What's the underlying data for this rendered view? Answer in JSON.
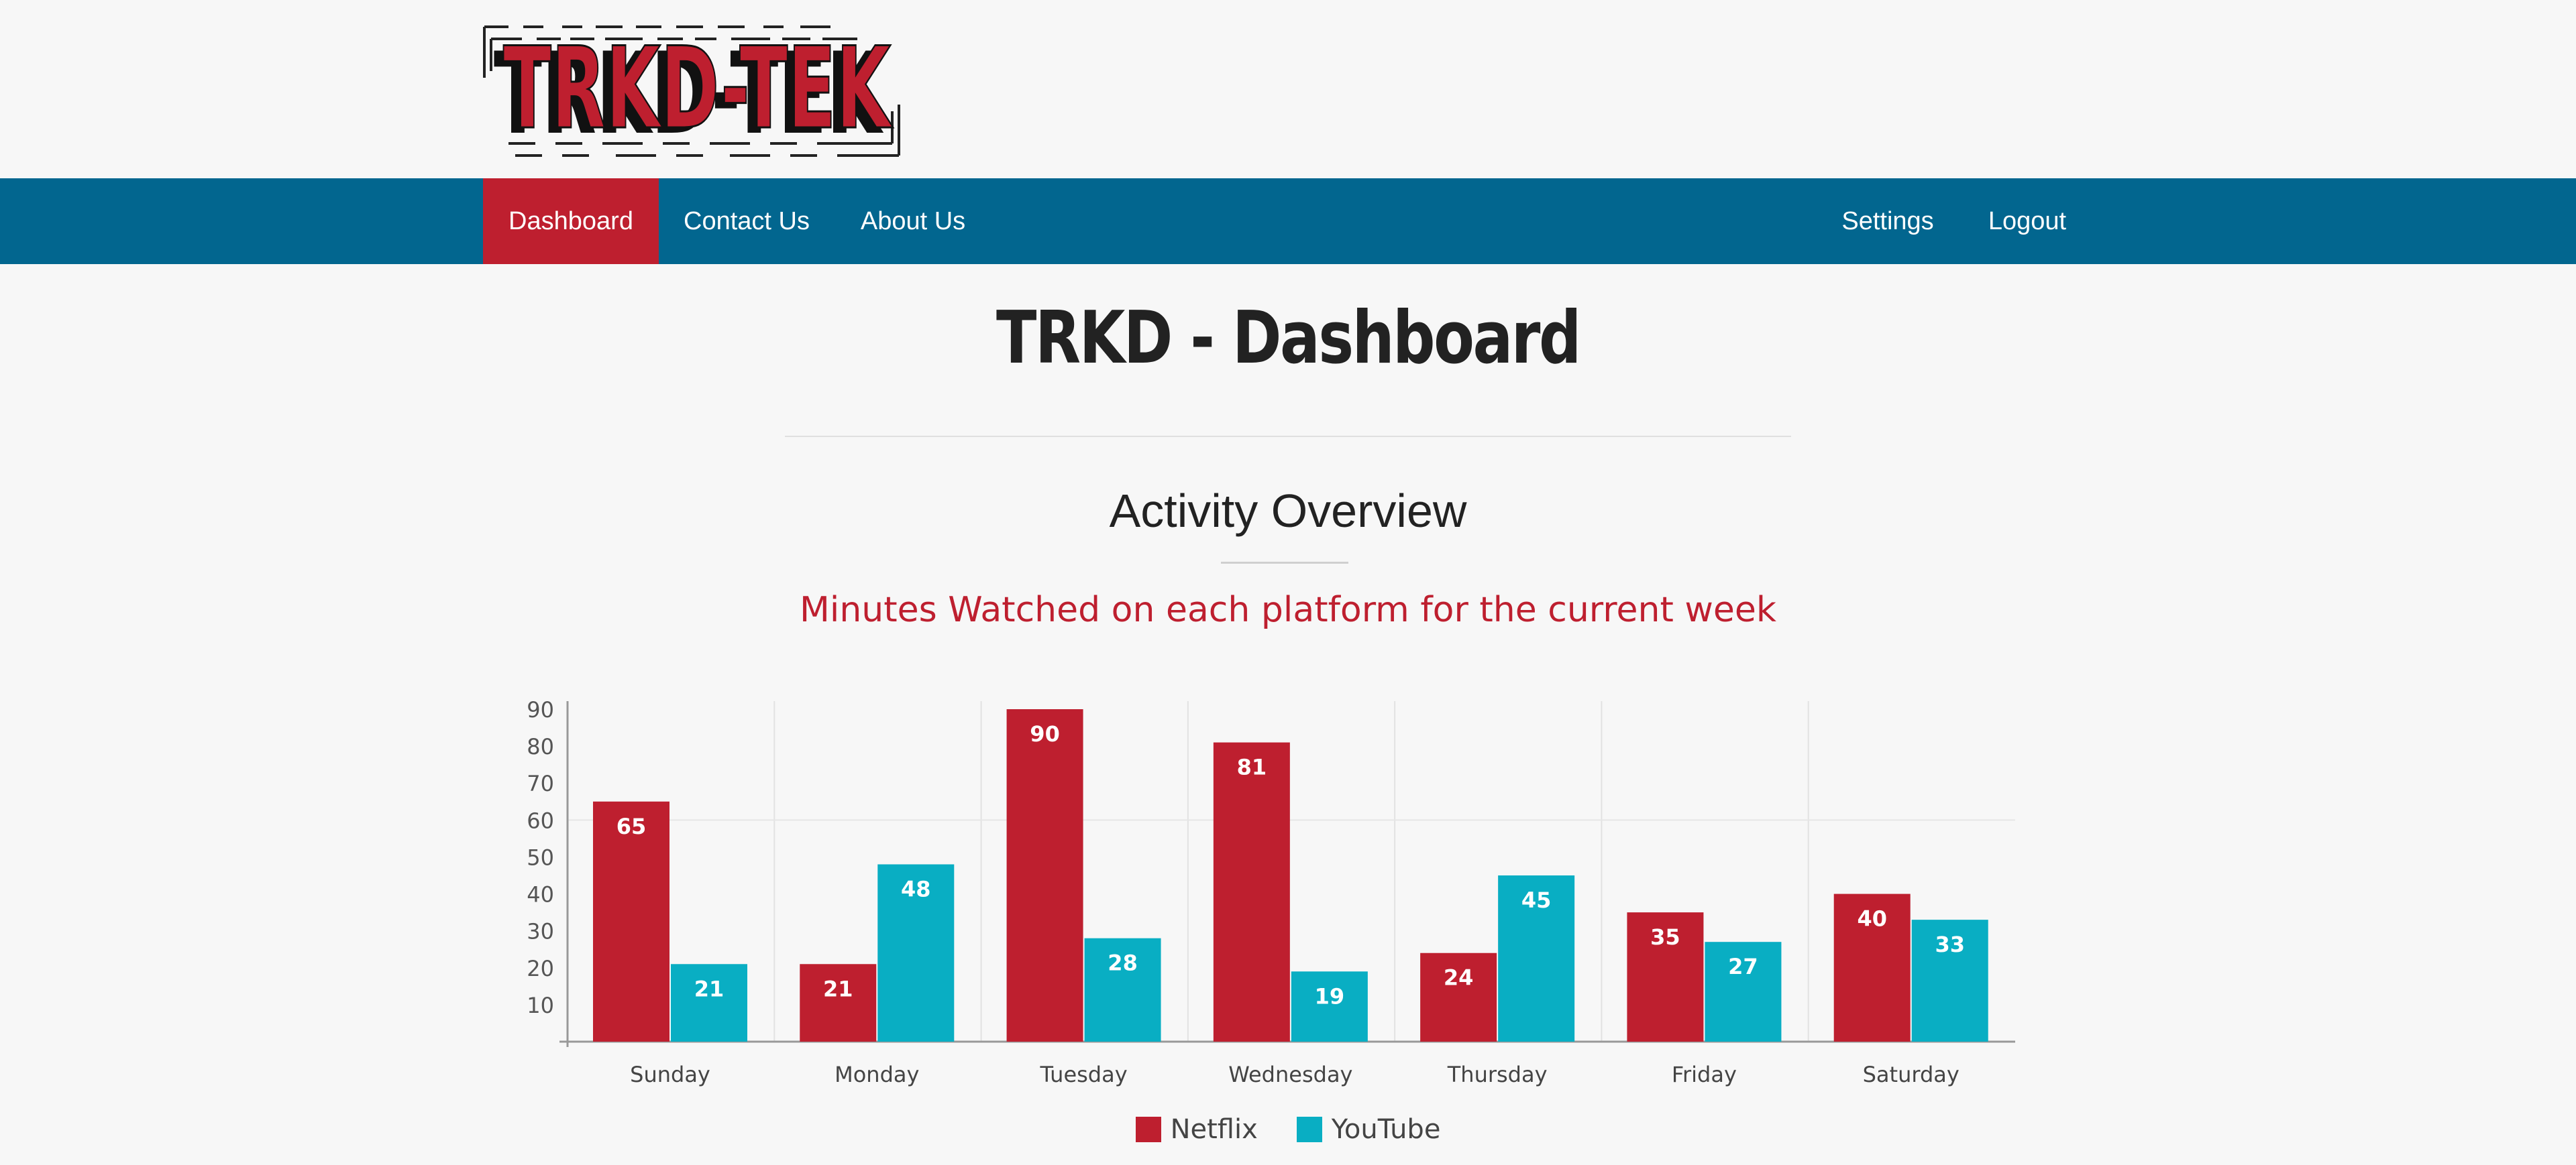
{
  "logo": {
    "text": "TRKD-TEK"
  },
  "nav": {
    "left": [
      {
        "label": "Dashboard",
        "active": true
      },
      {
        "label": "Contact Us",
        "active": false
      },
      {
        "label": "About Us",
        "active": false
      }
    ],
    "right": [
      {
        "label": "Settings"
      },
      {
        "label": "Logout"
      }
    ]
  },
  "page": {
    "title": "TRKD - Dashboard",
    "section_title": "Activity Overview",
    "subtitle": "Minutes Watched on each platform for the current week"
  },
  "colors": {
    "navbar": "#02668f",
    "accent": "#be1f2f",
    "netflix": "#be1f2f",
    "youtube": "#09aec3"
  },
  "chart_data": {
    "type": "bar",
    "categories": [
      "Sunday",
      "Monday",
      "Tuesday",
      "Wednesday",
      "Thursday",
      "Friday",
      "Saturday"
    ],
    "series": [
      {
        "name": "Netflix",
        "values": [
          65,
          21,
          90,
          81,
          24,
          35,
          40
        ]
      },
      {
        "name": "YouTube",
        "values": [
          21,
          48,
          28,
          19,
          45,
          27,
          33
        ]
      }
    ],
    "yticks": [
      10,
      20,
      30,
      40,
      50,
      60,
      70,
      80,
      90
    ],
    "ylim": [
      0,
      90
    ],
    "grid": true,
    "legend": "bottom-center",
    "data_labels": true
  }
}
